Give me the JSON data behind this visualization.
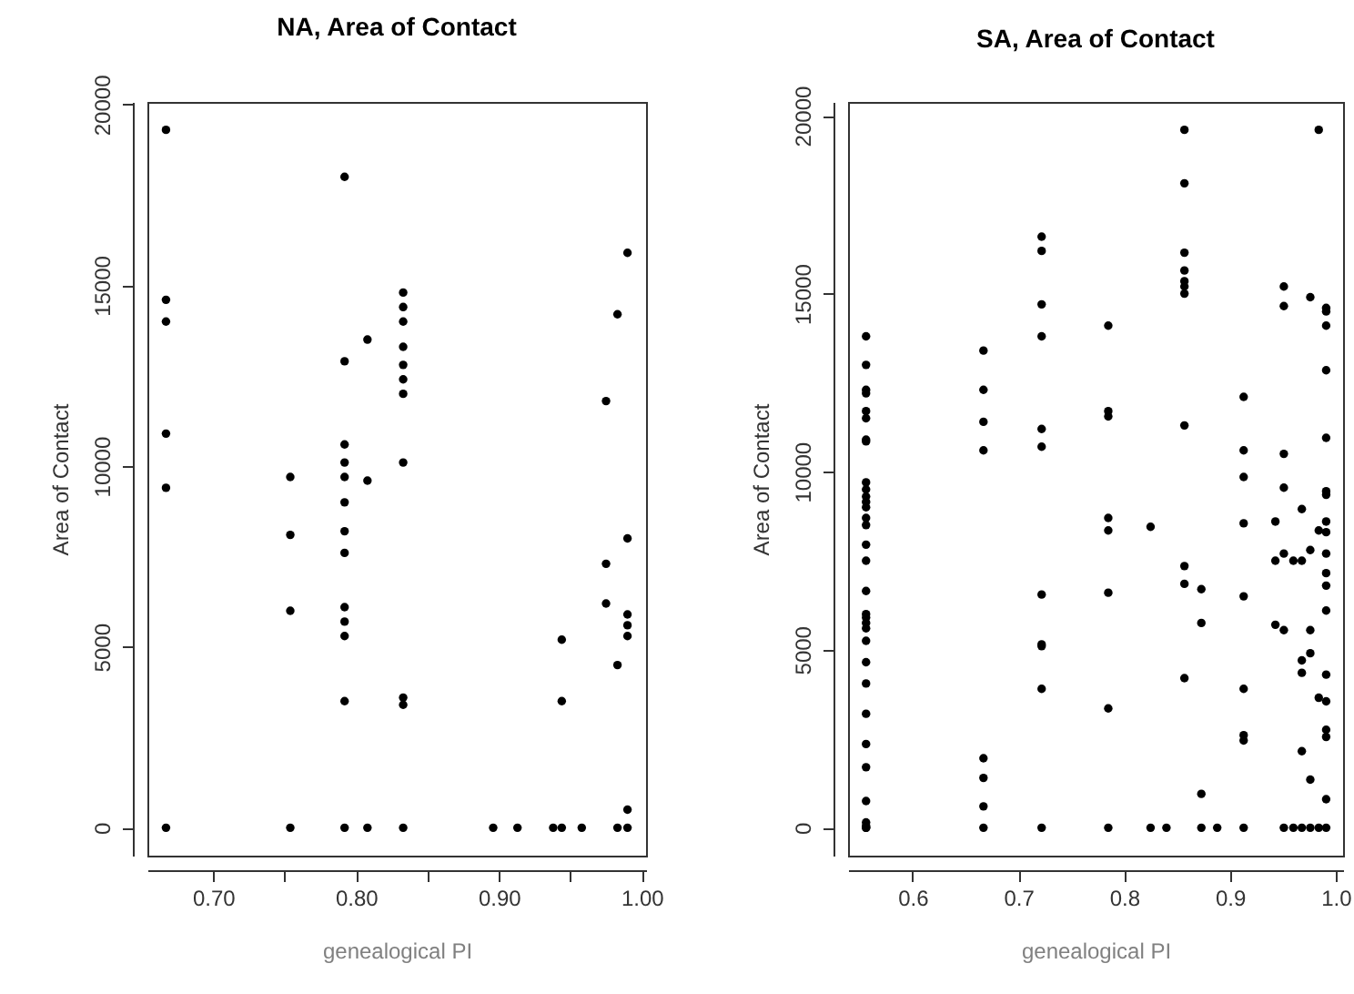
{
  "chart_data": [
    {
      "type": "scatter",
      "title": "NA, Area of Contact",
      "xlabel": "genealogical PI",
      "ylabel": "Area of Contact",
      "xlim": [
        0.654,
        1.003
      ],
      "ylim": [
        -772,
        20072
      ],
      "xticks": [
        {
          "value": 0.7,
          "label": "0.70"
        },
        {
          "value": 0.75,
          "label": null
        },
        {
          "value": 0.8,
          "label": "0.80"
        },
        {
          "value": 0.85,
          "label": null
        },
        {
          "value": 0.9,
          "label": "0.90"
        },
        {
          "value": 0.95,
          "label": null
        },
        {
          "value": 1.0,
          "label": "1.00"
        }
      ],
      "yticks": [
        0,
        5000,
        10000,
        15000,
        20000
      ],
      "grid": false,
      "marker": "circle",
      "series": [
        {
          "color": "#000000",
          "x": [
            0.667,
            0.667,
            0.667,
            0.667,
            0.667,
            0.667,
            0.754,
            0.754,
            0.754,
            0.754,
            0.792,
            0.792,
            0.792,
            0.792,
            0.792,
            0.792,
            0.792,
            0.792,
            0.792,
            0.792,
            0.792,
            0.792,
            0.792,
            0.808,
            0.808,
            0.808,
            0.833,
            0.833,
            0.833,
            0.833,
            0.833,
            0.833,
            0.833,
            0.833,
            0.833,
            0.833,
            0.833,
            0.896,
            0.913,
            0.938,
            0.944,
            0.944,
            0.944,
            0.958,
            0.975,
            0.975,
            0.975,
            0.983,
            0.983,
            0.983,
            0.99,
            0.99,
            0.99,
            0.99,
            0.99,
            0.99,
            0.99
          ],
          "values": [
            19300,
            14600,
            14000,
            10900,
            9400,
            0,
            9700,
            8100,
            6000,
            0,
            18000,
            12900,
            10600,
            10100,
            9700,
            9000,
            8200,
            7600,
            6100,
            5700,
            5300,
            3500,
            0,
            13500,
            9600,
            0,
            14800,
            14400,
            14000,
            13300,
            12800,
            12400,
            12000,
            10100,
            3600,
            3400,
            0,
            0,
            0,
            0,
            5200,
            3500,
            0,
            0,
            11800,
            7300,
            6200,
            14200,
            4500,
            0,
            15900,
            8000,
            5900,
            5600,
            5300,
            500,
            0
          ]
        }
      ]
    },
    {
      "type": "scatter",
      "title": "SA, Area of Contact",
      "xlabel": "genealogical PI",
      "ylabel": "Area of Contact",
      "xlim": [
        0.539,
        1.007
      ],
      "ylim": [
        -784,
        20384
      ],
      "xticks": [
        0.6,
        0.7,
        0.8,
        0.9,
        {
          "value": 1.0,
          "label": "1.0"
        }
      ],
      "yticks": [
        0,
        5000,
        10000,
        15000,
        20000
      ],
      "grid": false,
      "marker": "circle",
      "series": [
        {
          "color": "#000000",
          "x": [
            0.556,
            0.556,
            0.556,
            0.556,
            0.556,
            0.556,
            0.556,
            0.556,
            0.556,
            0.556,
            0.556,
            0.556,
            0.556,
            0.556,
            0.556,
            0.556,
            0.556,
            0.556,
            0.556,
            0.556,
            0.556,
            0.556,
            0.556,
            0.556,
            0.556,
            0.556,
            0.556,
            0.556,
            0.556,
            0.556,
            0.556,
            0.556,
            0.556,
            0.667,
            0.667,
            0.667,
            0.667,
            0.667,
            0.667,
            0.667,
            0.667,
            0.722,
            0.722,
            0.722,
            0.722,
            0.722,
            0.722,
            0.722,
            0.722,
            0.722,
            0.722,
            0.722,
            0.785,
            0.785,
            0.785,
            0.785,
            0.785,
            0.785,
            0.785,
            0.785,
            0.825,
            0.825,
            0.84,
            0.857,
            0.857,
            0.857,
            0.857,
            0.857,
            0.857,
            0.857,
            0.857,
            0.857,
            0.857,
            0.857,
            0.873,
            0.873,
            0.873,
            0.873,
            0.888,
            0.913,
            0.913,
            0.913,
            0.913,
            0.913,
            0.913,
            0.913,
            0.913,
            0.913,
            0.943,
            0.943,
            0.943,
            0.951,
            0.951,
            0.951,
            0.951,
            0.951,
            0.951,
            0.951,
            0.96,
            0.96,
            0.968,
            0.968,
            0.968,
            0.968,
            0.968,
            0.968,
            0.976,
            0.976,
            0.976,
            0.976,
            0.976,
            0.976,
            0.984,
            0.984,
            0.984,
            0.984,
            0.991,
            0.991,
            0.991,
            0.991,
            0.991,
            0.991,
            0.991,
            0.991,
            0.991,
            0.991,
            0.991,
            0.991,
            0.991,
            0.991,
            0.991,
            0.991,
            0.991,
            0.991,
            0.991
          ],
          "values": [
            13800,
            13000,
            12300,
            12200,
            11700,
            11500,
            10900,
            10850,
            9700,
            9500,
            9300,
            9150,
            9000,
            8700,
            8500,
            7950,
            7500,
            6650,
            6000,
            5900,
            5750,
            5600,
            5250,
            4650,
            4050,
            3200,
            2350,
            1700,
            750,
            150,
            50,
            0,
            0,
            13400,
            12300,
            11400,
            10600,
            1950,
            1400,
            600,
            0,
            16600,
            16200,
            14700,
            13800,
            11200,
            10700,
            6550,
            5150,
            5100,
            3900,
            0,
            14100,
            11700,
            11550,
            8700,
            8350,
            6600,
            3350,
            0,
            8450,
            0,
            0,
            19600,
            18100,
            16150,
            15650,
            15350,
            15200,
            15000,
            11300,
            7350,
            6850,
            4200,
            6700,
            5750,
            950,
            0,
            0,
            12100,
            10600,
            9850,
            8550,
            6500,
            3900,
            2600,
            2450,
            0,
            8600,
            7500,
            5700,
            15200,
            14650,
            10500,
            9550,
            7700,
            5550,
            0,
            7500,
            0,
            8950,
            7500,
            4700,
            4350,
            2150,
            0,
            14900,
            7800,
            5550,
            4900,
            1350,
            0,
            19600,
            8350,
            3650,
            0,
            14600,
            14500,
            14100,
            12850,
            10950,
            9350,
            9450,
            8600,
            8300,
            7700,
            7150,
            6800,
            6100,
            4300,
            3550,
            2750,
            2550,
            800,
            0
          ]
        }
      ]
    }
  ]
}
